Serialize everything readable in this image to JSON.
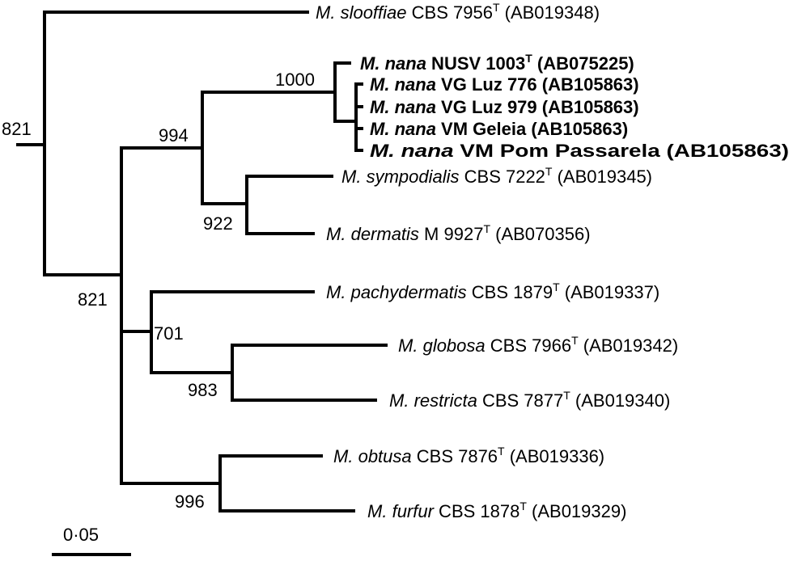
{
  "tree": {
    "bootstrap": {
      "root": "821",
      "ingroup": "821",
      "mpach_group": "701",
      "glob_restr": "983",
      "nana_symp": "994",
      "nana_clade": "1000",
      "symp_derm": "922",
      "obt_furf": "996"
    },
    "scale_label": "0·05",
    "taxa": [
      {
        "genus": "M.",
        "species": "slooffiae",
        "strain": " CBS 7956",
        "sup": "T",
        "acc": " (AB019348)",
        "bold": false
      },
      {
        "genus": "M.",
        "species": "nana",
        "strain": " NUSV 1003",
        "sup": "T",
        "acc": " (AB075225)",
        "bold": true
      },
      {
        "genus": "M.",
        "species": "nana",
        "strain": " VG Luz 776",
        "sup": "",
        "acc": " (AB105863)",
        "bold": true
      },
      {
        "genus": "M.",
        "species": "nana",
        "strain": " VG Luz 979",
        "sup": "",
        "acc": " (AB105863)",
        "bold": true
      },
      {
        "genus": "M.",
        "species": "nana",
        "strain": " VM Geleia",
        "sup": "",
        "acc": " (AB105863)",
        "bold": true
      },
      {
        "genus": "M.",
        "species": "nana",
        "strain": " VM Pom Passarela",
        "sup": "",
        "acc": " (AB105863)",
        "bold": true
      },
      {
        "genus": "M.",
        "species": "sympodialis",
        "strain": " CBS 7222",
        "sup": "T",
        "acc": " (AB019345)",
        "bold": false
      },
      {
        "genus": "M.",
        "species": "dermatis",
        "strain": " M 9927",
        "sup": "T",
        "acc": " (AB070356)",
        "bold": false
      },
      {
        "genus": "M.",
        "species": "pachydermatis",
        "strain": " CBS 1879",
        "sup": "T",
        "acc": " (AB019337)",
        "bold": false
      },
      {
        "genus": "M.",
        "species": "globosa",
        "strain": " CBS 7966",
        "sup": "T",
        "acc": " (AB019342)",
        "bold": false
      },
      {
        "genus": "M.",
        "species": "restricta",
        "strain": " CBS 7877",
        "sup": "T",
        "acc": " (AB019340)",
        "bold": false
      },
      {
        "genus": "M.",
        "species": "obtusa",
        "strain": " CBS 7876",
        "sup": "T",
        "acc": " (AB019336)",
        "bold": false
      },
      {
        "genus": "M.",
        "species": "furfur",
        "strain": " CBS 1878",
        "sup": "T",
        "acc": " (AB019329)",
        "bold": false
      }
    ]
  }
}
